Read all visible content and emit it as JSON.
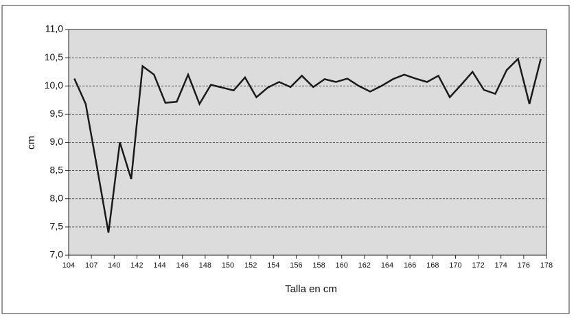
{
  "chart_data": {
    "type": "line",
    "y_label": "cm",
    "x_label": "Talla en cm",
    "x_labels": [
      "104",
      "107",
      "140",
      "142",
      "144",
      "146",
      "148",
      "150",
      "152",
      "154",
      "156",
      "158",
      "160",
      "162",
      "164",
      "166",
      "168",
      "170",
      "172",
      "174",
      "176",
      "178"
    ],
    "values": [
      10.13,
      9.68,
      8.55,
      7.4,
      9.0,
      8.35,
      10.35,
      10.2,
      9.7,
      9.72,
      10.2,
      9.68,
      10.02,
      9.97,
      9.92,
      10.15,
      9.8,
      9.97,
      10.07,
      9.98,
      10.18,
      9.98,
      10.12,
      10.07,
      10.13,
      10.0,
      9.9,
      10.0,
      10.12,
      10.2,
      10.13,
      10.07,
      10.18,
      9.8,
      10.02,
      10.25,
      9.93,
      9.86,
      10.28,
      10.48,
      9.68,
      10.48
    ],
    "color": "#1a1a1a",
    "ylim": [
      7.0,
      11.0
    ],
    "yticks": [
      {
        "value": 7.0,
        "label": "7,0"
      },
      {
        "value": 7.5,
        "label": "7,5"
      },
      {
        "value": 8.0,
        "label": "8,0"
      },
      {
        "value": 8.5,
        "label": "8,5"
      },
      {
        "value": 9.0,
        "label": "9,0"
      },
      {
        "value": 9.5,
        "label": "9,5"
      },
      {
        "value": 10.0,
        "label": "10,0"
      },
      {
        "value": 10.5,
        "label": "10,5"
      },
      {
        "value": 11.0,
        "label": "11,0"
      }
    ],
    "grid": true
  }
}
